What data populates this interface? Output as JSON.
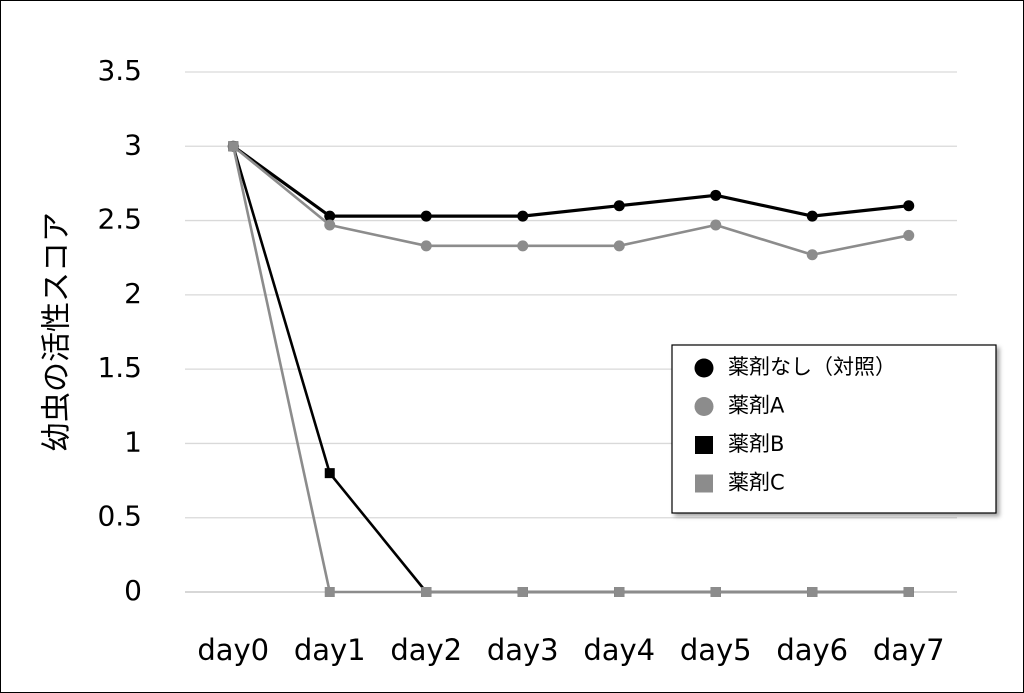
{
  "chart_data": {
    "type": "line",
    "y_label": "幼虫の活性スコア",
    "categories": [
      "day0",
      "day1",
      "day2",
      "day3",
      "day4",
      "day5",
      "day6",
      "day7"
    ],
    "series": [
      {
        "name": "薬剤なし（対照）",
        "color": "#000000",
        "marker": "circle",
        "values": [
          3,
          2.53,
          2.53,
          2.53,
          2.6,
          2.67,
          2.53,
          2.6
        ]
      },
      {
        "name": "薬剤A",
        "color": "#8c8c8c",
        "marker": "circle",
        "values": [
          3,
          2.47,
          2.33,
          2.33,
          2.33,
          2.47,
          2.27,
          2.4
        ]
      },
      {
        "name": "薬剤B",
        "color": "#000000",
        "marker": "square",
        "values": [
          3,
          0.8,
          0,
          0,
          0,
          0,
          0,
          0
        ]
      },
      {
        "name": "薬剤C",
        "color": "#8c8c8c",
        "marker": "square",
        "values": [
          3,
          0,
          0,
          0,
          0,
          0,
          0,
          0
        ]
      }
    ],
    "ylim": [
      0,
      3.5
    ],
    "yticks": [
      0,
      0.5,
      1,
      1.5,
      2,
      2.5,
      3,
      3.5
    ],
    "grid": true,
    "legend": "right"
  }
}
